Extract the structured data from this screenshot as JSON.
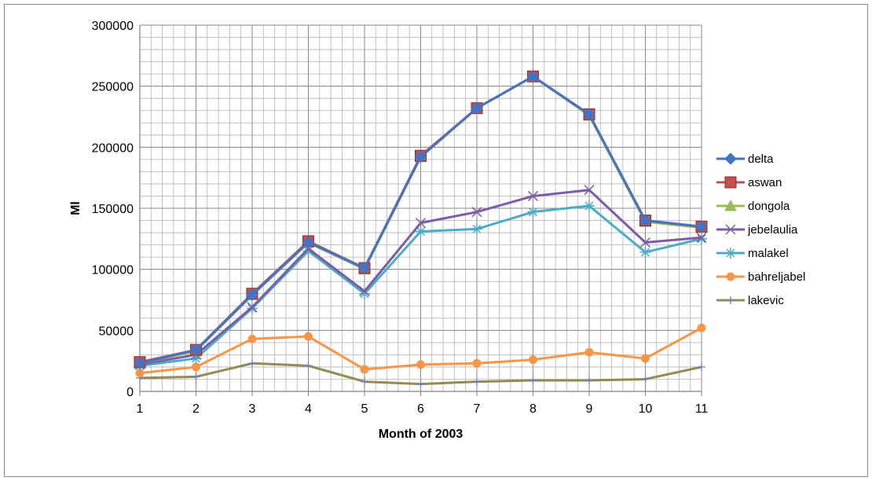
{
  "chart_data": {
    "type": "line",
    "title": "",
    "xlabel": "Month of 2003",
    "ylabel": "Ml",
    "x": [
      1,
      2,
      3,
      4,
      5,
      6,
      7,
      8,
      9,
      10,
      11
    ],
    "xlim": [
      1,
      11
    ],
    "ylim": [
      0,
      300000
    ],
    "yticks": [
      0,
      50000,
      100000,
      150000,
      200000,
      250000,
      300000
    ],
    "grid": true,
    "legend_position": "right",
    "series": [
      {
        "name": "delta",
        "color": "#4472c4",
        "marker": "diamond",
        "values": [
          23000,
          34000,
          79000,
          122000,
          101000,
          192000,
          232000,
          258000,
          227000,
          140000,
          135000
        ]
      },
      {
        "name": "aswan",
        "color": "#c0504d",
        "marker": "square",
        "values": [
          24000,
          34000,
          80000,
          123000,
          101000,
          193000,
          232000,
          258000,
          227000,
          140000,
          135000
        ]
      },
      {
        "name": "dongola",
        "color": "#9bbb59",
        "marker": "triangle",
        "values": [
          23000,
          33000,
          79000,
          122000,
          100000,
          192000,
          232000,
          258000,
          226000,
          139000,
          134000
        ]
      },
      {
        "name": "jebelaulia",
        "color": "#7e5ba6",
        "marker": "x",
        "values": [
          22000,
          30000,
          69000,
          117000,
          82000,
          138000,
          147000,
          160000,
          165000,
          122000,
          126000
        ]
      },
      {
        "name": "malakel",
        "color": "#4bacc6",
        "marker": "star",
        "values": [
          21000,
          27000,
          68000,
          115000,
          80000,
          131000,
          133000,
          147000,
          152000,
          114000,
          125000
        ]
      },
      {
        "name": "bahreljabel",
        "color": "#f79646",
        "marker": "circle",
        "values": [
          15000,
          20000,
          43000,
          45000,
          18000,
          22000,
          23000,
          26000,
          32000,
          27000,
          52000
        ]
      },
      {
        "name": "lakevic",
        "color": "#948a54",
        "marker": "plus",
        "values": [
          11000,
          12000,
          23000,
          21000,
          8000,
          6000,
          8000,
          9000,
          9000,
          10000,
          20000
        ]
      }
    ]
  }
}
